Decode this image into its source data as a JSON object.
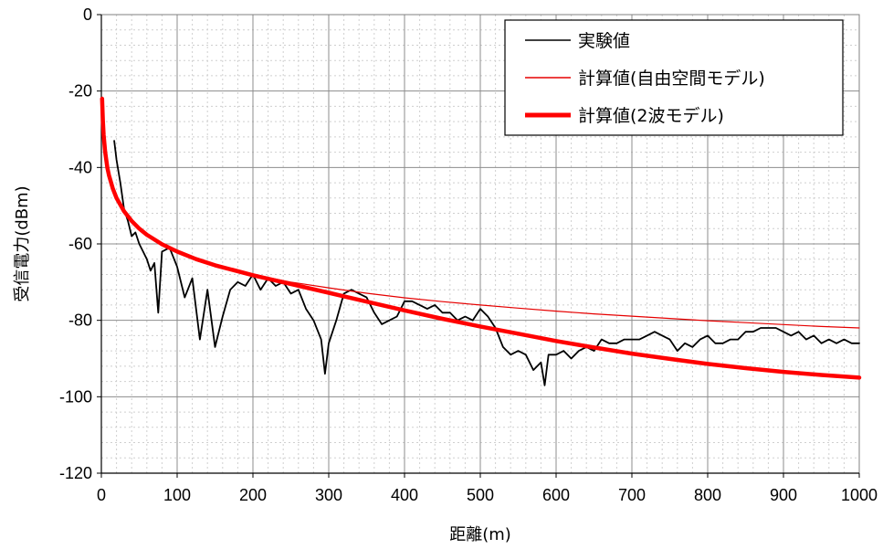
{
  "chart_data": {
    "type": "line",
    "xlabel": "距離(m)",
    "ylabel": "受信電力(dBm)",
    "xlim": [
      0,
      1000
    ],
    "ylim": [
      -120,
      0
    ],
    "x_ticks": [
      "0",
      "100",
      "200",
      "300",
      "400",
      "500",
      "600",
      "700",
      "800",
      "900",
      "1000"
    ],
    "y_ticks": [
      "0",
      "-20",
      "-40",
      "-60",
      "-80",
      "-100",
      "-120"
    ],
    "grid": true,
    "legend_position": "top-right",
    "series": [
      {
        "name": "実験値",
        "color": "#000000",
        "x": [
          17,
          20,
          25,
          30,
          35,
          40,
          45,
          50,
          55,
          60,
          65,
          70,
          75,
          80,
          90,
          100,
          110,
          120,
          130,
          140,
          150,
          160,
          170,
          180,
          190,
          200,
          210,
          220,
          230,
          240,
          250,
          260,
          270,
          280,
          290,
          295,
          300,
          310,
          320,
          330,
          340,
          350,
          360,
          370,
          380,
          390,
          400,
          410,
          420,
          430,
          440,
          450,
          460,
          470,
          480,
          490,
          500,
          510,
          520,
          530,
          540,
          550,
          560,
          570,
          580,
          585,
          590,
          600,
          610,
          620,
          630,
          640,
          650,
          660,
          670,
          680,
          690,
          700,
          710,
          720,
          730,
          740,
          750,
          760,
          770,
          780,
          790,
          800,
          810,
          820,
          830,
          840,
          850,
          860,
          870,
          880,
          890,
          900,
          910,
          920,
          930,
          940,
          950,
          960,
          970,
          980,
          990,
          1000
        ],
        "y": [
          -33,
          -38,
          -44,
          -51,
          -54,
          -58,
          -57,
          -60,
          -62,
          -64,
          -67,
          -65,
          -78,
          -62,
          -61,
          -66,
          -74,
          -69,
          -85,
          -72,
          -87,
          -79,
          -72,
          -70,
          -71,
          -68,
          -72,
          -69,
          -71,
          -70,
          -73,
          -72,
          -77,
          -80,
          -85,
          -94,
          -86,
          -80,
          -73,
          -72,
          -73,
          -74,
          -78,
          -81,
          -80,
          -79,
          -75,
          -75,
          -76,
          -77,
          -76,
          -78,
          -78,
          -80,
          -79,
          -80,
          -77,
          -79,
          -82,
          -87,
          -89,
          -88,
          -89,
          -93,
          -91,
          -97,
          -89,
          -89,
          -88,
          -90,
          -88,
          -87,
          -88,
          -85,
          -86,
          -86,
          -85,
          -85,
          -85,
          -84,
          -83,
          -84,
          -85,
          -88,
          -86,
          -87,
          -85,
          -84,
          -86,
          -86,
          -85,
          -85,
          -83,
          -83,
          -82,
          -82,
          -82,
          -83,
          -84,
          -83,
          -85,
          -84,
          -86,
          -85,
          -86,
          -85,
          -86,
          -86
        ]
      },
      {
        "name": "計算値(自由空間モデル)",
        "color": "#e60000",
        "x": [
          1,
          2,
          3,
          5,
          8,
          10,
          15,
          20,
          30,
          40,
          50,
          60,
          80,
          100,
          125,
          150,
          200,
          250,
          300,
          350,
          400,
          450,
          500,
          550,
          600,
          650,
          700,
          750,
          800,
          850,
          900,
          950,
          1000
        ],
        "y": [
          -22.0,
          -28.0,
          -31.5,
          -36.0,
          -40.1,
          -42.0,
          -45.5,
          -48.0,
          -51.5,
          -54.0,
          -56.0,
          -57.6,
          -60.1,
          -62.0,
          -64.0,
          -65.5,
          -68.0,
          -70.0,
          -71.5,
          -72.9,
          -74.1,
          -75.1,
          -76.0,
          -76.8,
          -77.6,
          -78.3,
          -78.9,
          -79.5,
          -80.1,
          -80.6,
          -81.1,
          -81.6,
          -82.0
        ]
      },
      {
        "name": "計算値(2波モデル)",
        "color": "#ff0000",
        "x": [
          1,
          2,
          3,
          5,
          8,
          10,
          15,
          20,
          30,
          40,
          50,
          60,
          80,
          100,
          125,
          150,
          200,
          250,
          300,
          350,
          400,
          450,
          500,
          550,
          600,
          650,
          700,
          750,
          800,
          850,
          900,
          950,
          1000
        ],
        "y": [
          -22.0,
          -28.0,
          -31.5,
          -36.0,
          -40.1,
          -42.0,
          -45.5,
          -48.0,
          -51.5,
          -54.0,
          -56.0,
          -57.6,
          -60.1,
          -62.0,
          -64.0,
          -65.6,
          -68.2,
          -70.5,
          -72.8,
          -75.1,
          -77.4,
          -79.6,
          -81.6,
          -83.5,
          -85.4,
          -87.1,
          -88.7,
          -90.1,
          -91.4,
          -92.5,
          -93.5,
          -94.3,
          -95.0
        ]
      }
    ]
  }
}
